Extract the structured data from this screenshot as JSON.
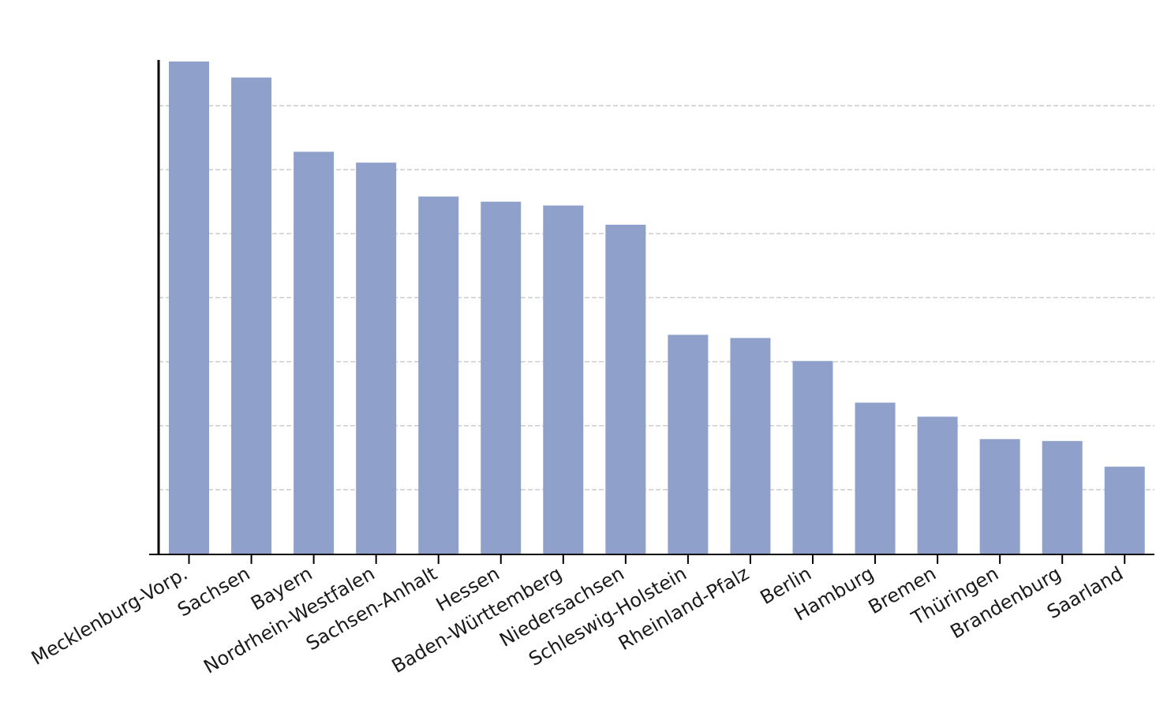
{
  "chart_data": {
    "type": "bar",
    "title": "",
    "xlabel": "",
    "ylabel": "",
    "categories": [
      "Mecklenburg-Vorp.",
      "Sachsen",
      "Bayern",
      "Nordrhein-Westfalen",
      "Sachsen-Anhalt",
      "Hessen",
      "Baden-Württemberg",
      "Niedersachsen",
      "Schleswig-Holstein",
      "Rheinland-Pfalz",
      "Berlin",
      "Hamburg",
      "Bremen",
      "Thüringen",
      "Brandenburg",
      "Saarland"
    ],
    "values": [
      7.69,
      7.44,
      6.28,
      6.11,
      5.58,
      5.5,
      5.44,
      5.14,
      3.42,
      3.37,
      3.01,
      2.36,
      2.14,
      1.79,
      1.76,
      1.36
    ],
    "ylim": [
      0,
      7.69
    ],
    "yticks": [
      1,
      2,
      3,
      4,
      5,
      6,
      7
    ],
    "y_tick_labels_shown": false,
    "grid": "horizontal-dashed",
    "bar_color": "#8fa1cb",
    "grid_color": "#cccccc",
    "axis_color": "#000000"
  }
}
